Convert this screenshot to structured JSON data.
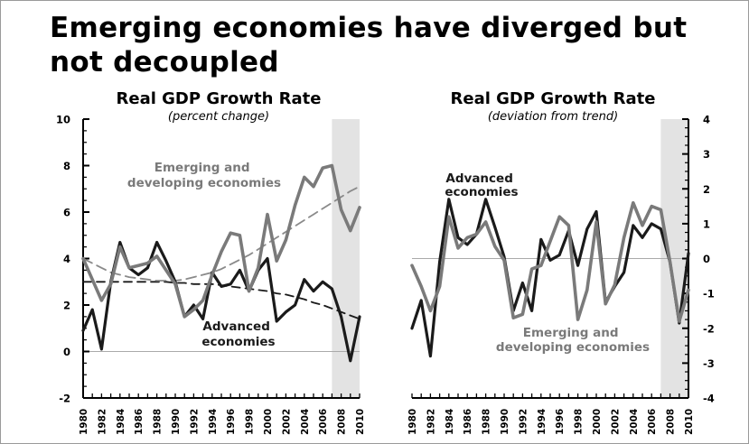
{
  "page": {
    "headline": "Emerging economies have diverged but not decoupled"
  },
  "chart_data": [
    {
      "type": "line",
      "title": "Real GDP Growth Rate",
      "subtitle": "(percent change)",
      "xlabel": "",
      "ylabel": "",
      "ylim": [
        -2,
        10
      ],
      "y_ticks": [
        -2,
        0,
        2,
        4,
        6,
        8,
        10
      ],
      "y_axis_side": "left",
      "x_tick_labels": [
        "1980",
        "1982",
        "1984",
        "1986",
        "1988",
        "1990",
        "1992",
        "1994",
        "1996",
        "1998",
        "2000",
        "2002",
        "2004",
        "2006",
        "2008",
        "2010"
      ],
      "shaded_region": [
        2007,
        2010
      ],
      "zero_line": 0,
      "grid": false,
      "x": [
        1980,
        1981,
        1982,
        1983,
        1984,
        1985,
        1986,
        1987,
        1988,
        1989,
        1990,
        1991,
        1992,
        1993,
        1994,
        1995,
        1996,
        1997,
        1998,
        1999,
        2000,
        2001,
        2002,
        2003,
        2004,
        2005,
        2006,
        2007,
        2008,
        2009,
        2010
      ],
      "series": [
        {
          "name": "Advanced economies",
          "color": "#1a1a1a",
          "values": [
            0.9,
            1.8,
            0.1,
            3.0,
            4.7,
            3.6,
            3.3,
            3.6,
            4.7,
            3.9,
            3.0,
            1.5,
            2.0,
            1.4,
            3.4,
            2.8,
            2.9,
            3.5,
            2.6,
            3.5,
            4.0,
            1.3,
            1.7,
            2.0,
            3.1,
            2.6,
            3.0,
            2.7,
            1.5,
            -0.4,
            1.5
          ]
        },
        {
          "name": "Emerging and developing economies",
          "color": "#7a7a7a",
          "values": [
            4.0,
            3.1,
            2.2,
            2.9,
            4.5,
            3.6,
            3.7,
            3.8,
            4.1,
            3.5,
            2.9,
            1.5,
            1.8,
            2.2,
            3.3,
            4.3,
            5.1,
            5.0,
            2.6,
            3.6,
            5.9,
            3.9,
            4.8,
            6.3,
            7.5,
            7.1,
            7.9,
            8.0,
            6.1,
            5.2,
            6.2
          ]
        },
        {
          "name": "Advanced economies trend",
          "color": "#1a1a1a",
          "style": "dashed",
          "values": [
            3.0,
            3.0,
            3.0,
            3.0,
            3.0,
            3.0,
            3.0,
            3.0,
            3.0,
            3.0,
            2.95,
            2.95,
            2.9,
            2.9,
            2.9,
            2.85,
            2.8,
            2.75,
            2.7,
            2.65,
            2.6,
            2.5,
            2.45,
            2.35,
            2.25,
            2.1,
            2.0,
            1.85,
            1.7,
            1.55,
            1.4
          ]
        },
        {
          "name": "Emerging and developing economies trend",
          "color": "#8a8a8a",
          "style": "dashed",
          "values": [
            4.0,
            3.8,
            3.6,
            3.4,
            3.3,
            3.2,
            3.15,
            3.1,
            3.05,
            3.05,
            3.05,
            3.1,
            3.2,
            3.3,
            3.4,
            3.55,
            3.75,
            3.95,
            4.15,
            4.4,
            4.65,
            4.9,
            5.15,
            5.4,
            5.65,
            5.9,
            6.15,
            6.4,
            6.65,
            6.9,
            7.1
          ]
        }
      ],
      "annotations": [
        {
          "id": "emerging-label",
          "lines": [
            "Emerging and",
            "developing economies"
          ],
          "color": "#7a7a7a"
        },
        {
          "id": "advanced-label",
          "lines": [
            "Advanced",
            "economies"
          ],
          "color": "#1a1a1a"
        }
      ]
    },
    {
      "type": "line",
      "title": "Real GDP Growth Rate",
      "subtitle": "(deviation from trend)",
      "xlabel": "",
      "ylabel": "",
      "ylim": [
        -4,
        4
      ],
      "y_ticks": [
        -4,
        -3,
        -2,
        -1,
        0,
        1,
        2,
        3,
        4
      ],
      "y_axis_side": "right",
      "x_tick_labels": [
        "1980",
        "1982",
        "1984",
        "1986",
        "1988",
        "1990",
        "1992",
        "1994",
        "1996",
        "1998",
        "2000",
        "2002",
        "2004",
        "2006",
        "2008",
        "2010"
      ],
      "shaded_region": [
        2007,
        2010
      ],
      "zero_line": 0,
      "grid": false,
      "x": [
        1980,
        1981,
        1982,
        1983,
        1984,
        1985,
        1986,
        1987,
        1988,
        1989,
        1990,
        1991,
        1992,
        1993,
        1994,
        1995,
        1996,
        1997,
        1998,
        1999,
        2000,
        2001,
        2002,
        2003,
        2004,
        2005,
        2006,
        2007,
        2008,
        2009,
        2010
      ],
      "series": [
        {
          "name": "Advanced economies",
          "color": "#1a1a1a",
          "values": [
            -2.0,
            -1.2,
            -2.8,
            -0.1,
            1.7,
            0.6,
            0.4,
            0.7,
            1.7,
            0.9,
            0.05,
            -1.5,
            -0.7,
            -1.5,
            0.55,
            -0.05,
            0.1,
            0.8,
            -0.2,
            0.85,
            1.35,
            -1.25,
            -0.8,
            -0.4,
            0.95,
            0.6,
            1.0,
            0.85,
            -0.1,
            -1.85,
            0.15
          ]
        },
        {
          "name": "Emerging and developing economies",
          "color": "#7a7a7a",
          "values": [
            -0.2,
            -0.8,
            -1.5,
            -0.8,
            1.2,
            0.3,
            0.6,
            0.7,
            1.05,
            0.35,
            -0.05,
            -1.7,
            -1.6,
            -0.3,
            -0.2,
            0.5,
            1.2,
            0.95,
            -1.75,
            -0.9,
            1.05,
            -1.3,
            -0.75,
            0.6,
            1.6,
            0.95,
            1.5,
            1.4,
            -0.1,
            -1.8,
            -0.9
          ]
        }
      ],
      "annotations": [
        {
          "id": "advanced-label",
          "lines": [
            "Advanced",
            "economies"
          ],
          "color": "#1a1a1a"
        },
        {
          "id": "emerging-label",
          "lines": [
            "Emerging and",
            "developing economies"
          ],
          "color": "#7a7a7a"
        }
      ]
    }
  ]
}
